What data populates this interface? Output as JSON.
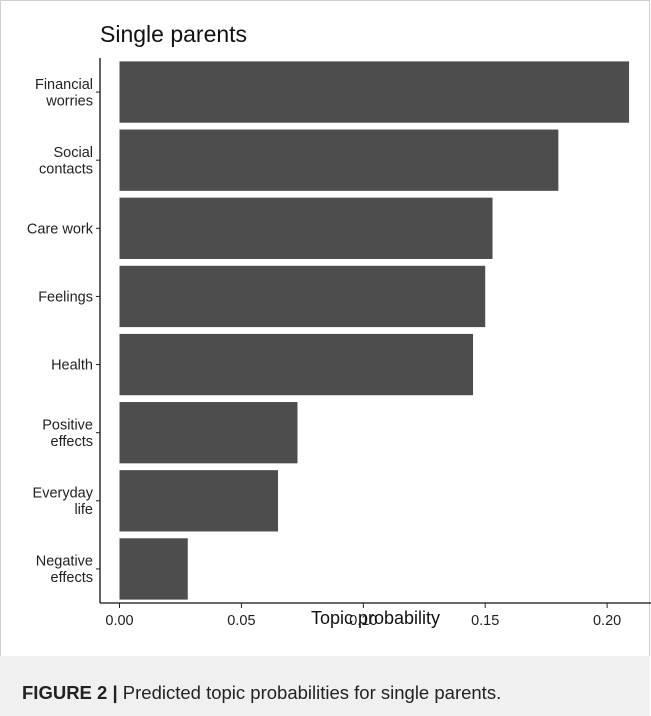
{
  "chart_data": {
    "type": "bar",
    "orientation": "horizontal",
    "title": "Single parents",
    "xlabel": "Topic probability",
    "ylabel": "",
    "xlim": [
      -0.008,
      0.218
    ],
    "xticks": [
      "0.00",
      "0.05",
      "0.10",
      "0.15",
      "0.20"
    ],
    "xtick_values": [
      0.0,
      0.05,
      0.1,
      0.15,
      0.2
    ],
    "grid": false,
    "bar_color": "#4d4d4d",
    "categories": [
      [
        "Financial",
        "worries"
      ],
      [
        "Social",
        "contacts"
      ],
      [
        "Care work"
      ],
      [
        "Feelings"
      ],
      [
        "Health"
      ],
      [
        "Positive",
        "effects"
      ],
      [
        "Everyday",
        "life"
      ],
      [
        "Negative",
        "effects"
      ]
    ],
    "values": [
      0.209,
      0.18,
      0.153,
      0.15,
      0.145,
      0.073,
      0.065,
      0.028
    ]
  },
  "caption": {
    "label": "FIGURE 2 |",
    "text": " Predicted topic probabilities for single parents."
  }
}
